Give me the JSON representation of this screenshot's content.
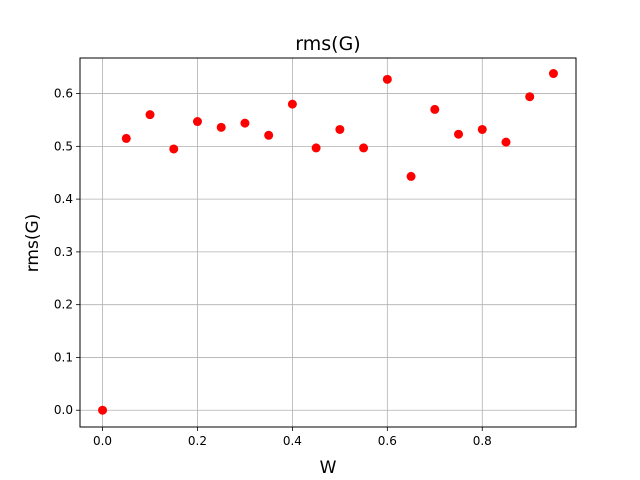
{
  "chart_data": {
    "type": "scatter",
    "title": "rms(G)",
    "xlabel": "W",
    "ylabel": "rms(G)",
    "grid": true,
    "xlim": [
      -0.0475,
      0.9975
    ],
    "ylim": [
      -0.0318,
      0.6674
    ],
    "xticks": [
      0.0,
      0.2,
      0.4,
      0.6,
      0.8
    ],
    "xtick_labels": [
      "0.0",
      "0.2",
      "0.4",
      "0.6",
      "0.8"
    ],
    "yticks": [
      0.0,
      0.1,
      0.2,
      0.3,
      0.4,
      0.5,
      0.6
    ],
    "ytick_labels": [
      "0.0",
      "0.1",
      "0.2",
      "0.3",
      "0.4",
      "0.5",
      "0.6"
    ],
    "series": [
      {
        "color": "#ff0000",
        "x": [
          0.0,
          0.05,
          0.1,
          0.15,
          0.2,
          0.25,
          0.3,
          0.35,
          0.4,
          0.45,
          0.5,
          0.55,
          0.6,
          0.65,
          0.7,
          0.75,
          0.8,
          0.85,
          0.9,
          0.95
        ],
        "y": [
          0.0,
          0.515,
          0.56,
          0.495,
          0.547,
          0.536,
          0.544,
          0.521,
          0.58,
          0.497,
          0.532,
          0.497,
          0.627,
          0.443,
          0.57,
          0.523,
          0.532,
          0.508,
          0.594,
          0.638
        ]
      }
    ]
  }
}
